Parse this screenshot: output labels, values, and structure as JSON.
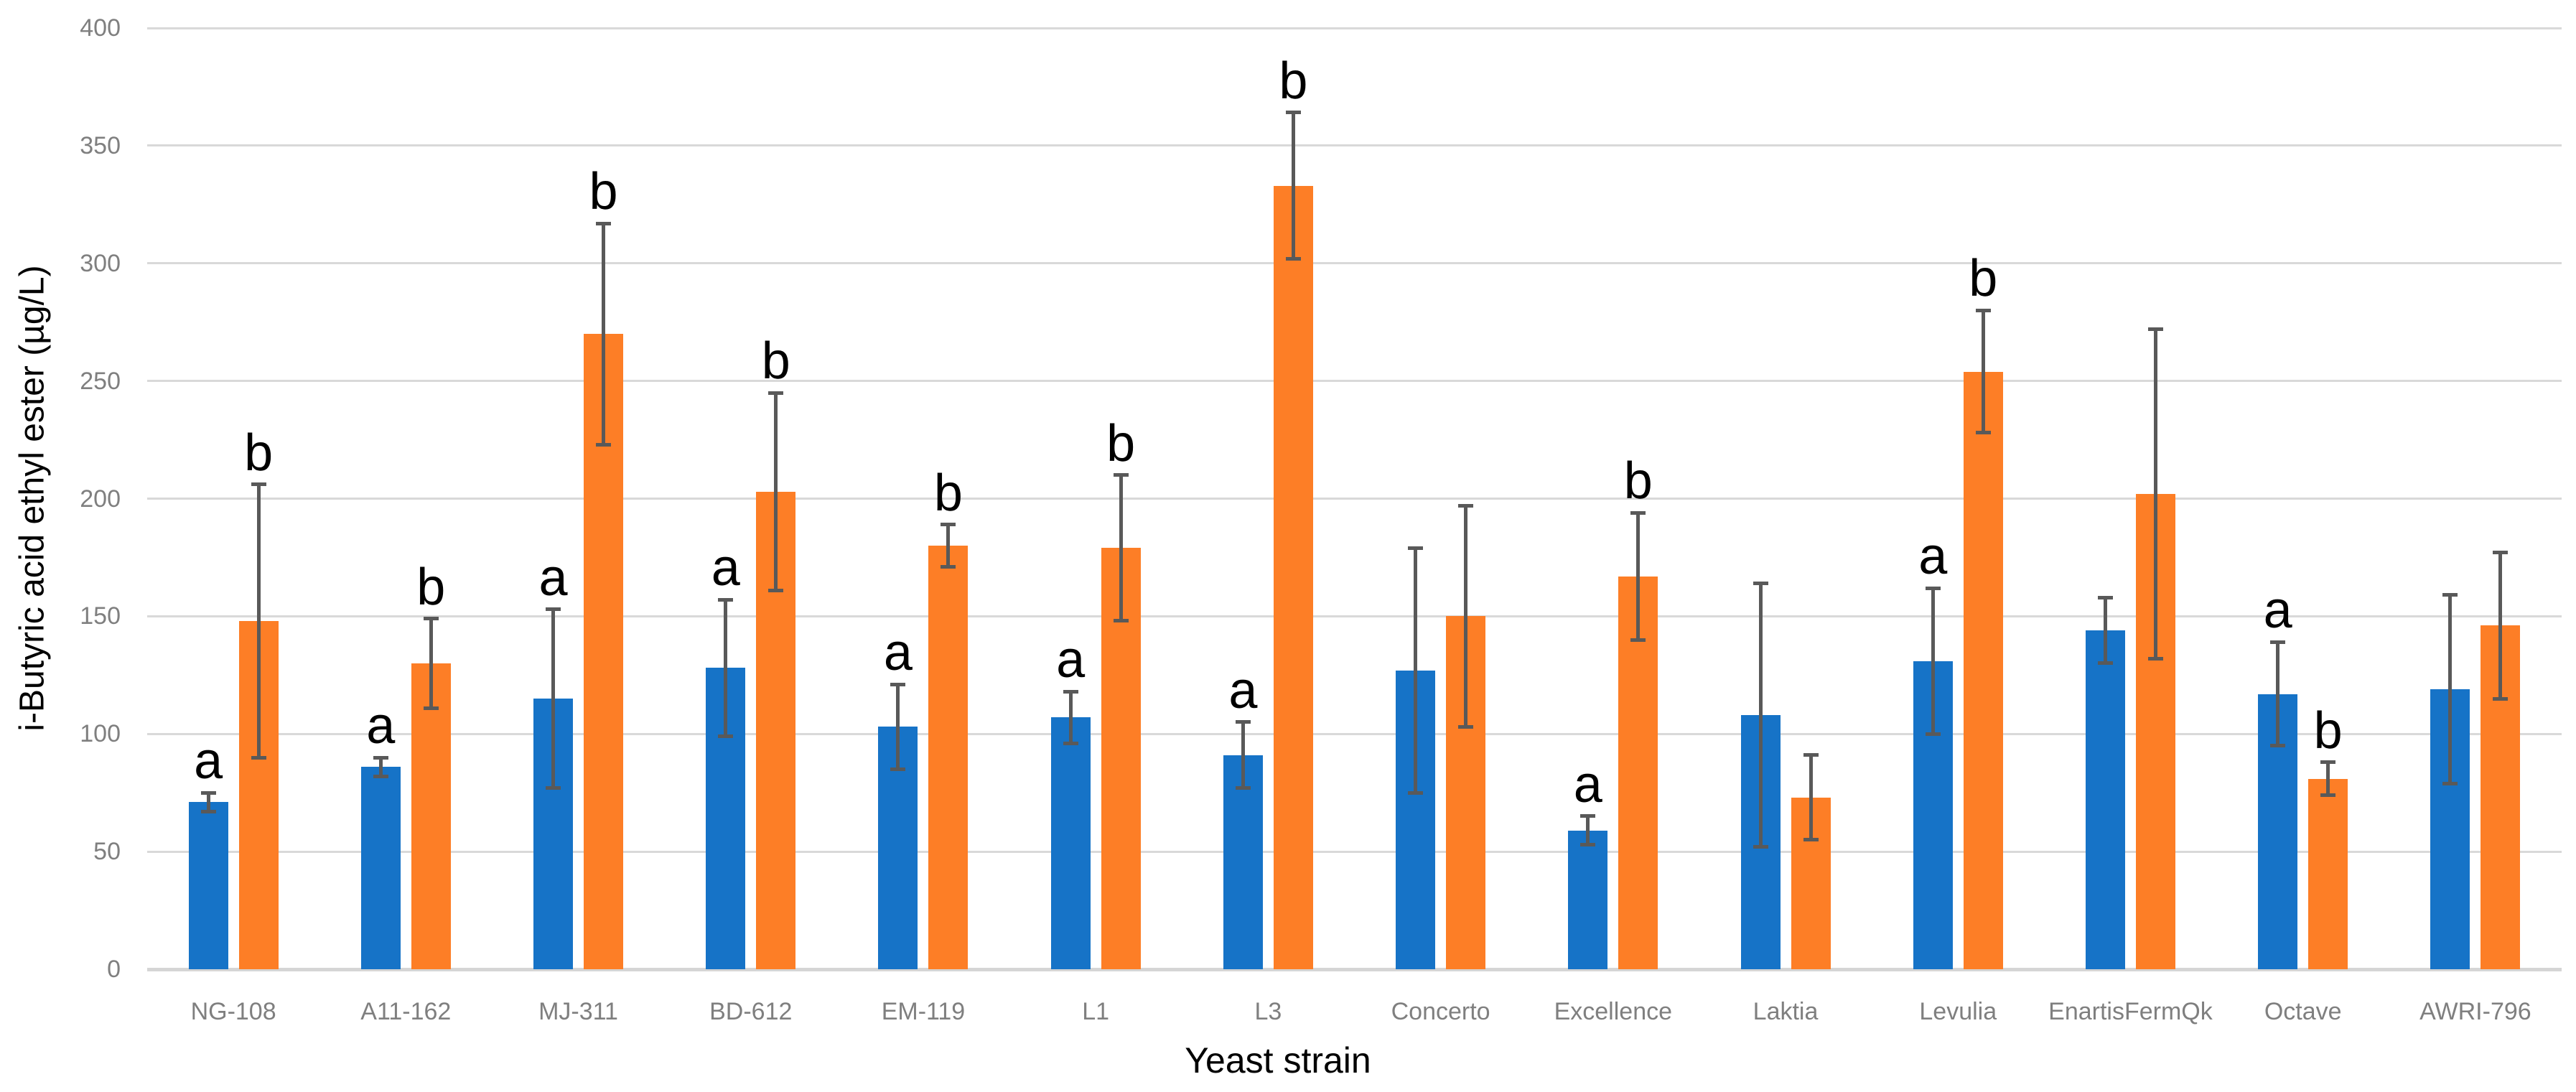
{
  "page": {
    "background": "#ffffff"
  },
  "chart_data": {
    "type": "bar",
    "title": "",
    "xlabel": "Yeast strain",
    "ylabel": "i-Butyric acid ethyl ester (µg/L)",
    "ylim": [
      0,
      400
    ],
    "ytick_step": 50,
    "yticks": [
      0,
      50,
      100,
      150,
      200,
      250,
      300,
      350,
      400
    ],
    "grid": true,
    "legend_position": "none",
    "categories": [
      "NG-108",
      "A11-162",
      "MJ-311",
      "BD-612",
      "EM-119",
      "L1",
      "L3",
      "Concerto",
      "Excellence",
      "Laktia",
      "Levulia",
      "EnartisFermQk",
      "Octave",
      "AWRI-796"
    ],
    "series": [
      {
        "name": "blue-series",
        "color": "#1673C7",
        "values": [
          71,
          86,
          115,
          128,
          103,
          107,
          91,
          127,
          59,
          108,
          131,
          144,
          117,
          119
        ],
        "errors": [
          4,
          4,
          38,
          29,
          18,
          11,
          14,
          52,
          6,
          56,
          31,
          14,
          22,
          40
        ],
        "letters": [
          "a",
          "a",
          "a",
          "a",
          "a",
          "a",
          "a",
          "",
          "a",
          "",
          "a",
          "",
          "a",
          ""
        ]
      },
      {
        "name": "orange-series",
        "color": "#FD7E26",
        "values": [
          148,
          130,
          270,
          203,
          180,
          179,
          333,
          150,
          167,
          73,
          254,
          202,
          81,
          146
        ],
        "errors": [
          58,
          19,
          47,
          42,
          9,
          31,
          31,
          47,
          27,
          18,
          26,
          70,
          7,
          31
        ],
        "letters": [
          "b",
          "b",
          "b",
          "b",
          "b",
          "b",
          "b",
          "",
          "b",
          "",
          "b",
          "",
          "b",
          ""
        ]
      }
    ],
    "styles": {
      "error_bar_color": "#595959",
      "gridline_color": "#D9D9D9",
      "axis_line_color": "#D5D5D5",
      "tick_label_color": "#7F7F7F",
      "category_label_color": "#7F7F7F",
      "letter_color": "#000000",
      "axis_title_color": "#000000"
    }
  }
}
